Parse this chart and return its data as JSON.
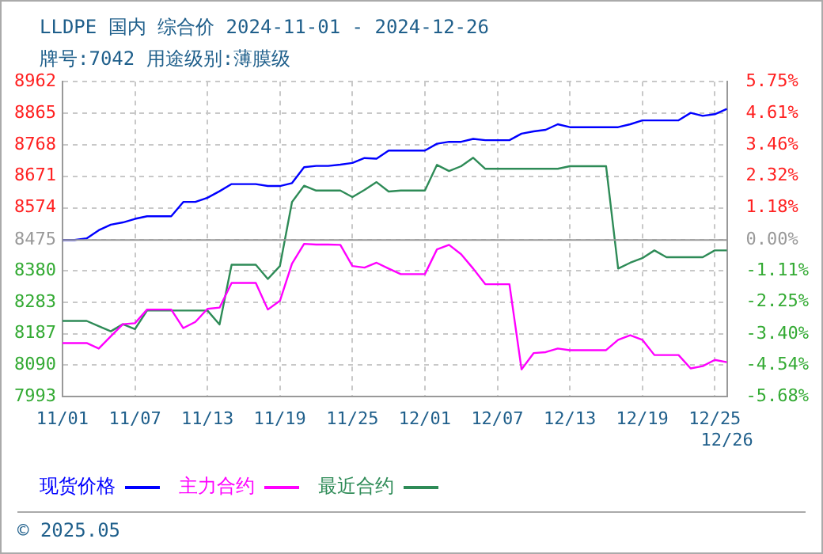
{
  "chart_data": {
    "type": "line",
    "title": "LLDPE 国内 综合价 2024-11-01 - 2024-12-26",
    "subtitle": "牌号:7042 用途级别:薄膜级",
    "categories": [
      "11/01",
      null,
      null,
      null,
      null,
      null,
      "11/07",
      null,
      null,
      null,
      null,
      null,
      "11/13",
      null,
      null,
      null,
      null,
      null,
      "11/19",
      null,
      null,
      null,
      null,
      null,
      "11/25",
      null,
      null,
      null,
      null,
      null,
      "12/01",
      null,
      null,
      null,
      null,
      null,
      "12/07",
      null,
      null,
      null,
      null,
      null,
      "12/13",
      null,
      null,
      null,
      null,
      null,
      "12/19",
      null,
      null,
      null,
      null,
      null,
      "12/25",
      "12/26"
    ],
    "series": [
      {
        "name": "现货价格",
        "color": "#0000ff",
        "values": [
          8475,
          8475,
          8480,
          8505,
          8522,
          8529,
          8540,
          8548,
          8548,
          8548,
          8592,
          8592,
          8605,
          8625,
          8647,
          8647,
          8647,
          8641,
          8641,
          8650,
          8699,
          8703,
          8703,
          8707,
          8712,
          8727,
          8725,
          8750,
          8750,
          8750,
          8750,
          8771,
          8777,
          8777,
          8786,
          8782,
          8782,
          8782,
          8802,
          8809,
          8814,
          8831,
          8822,
          8822,
          8822,
          8822,
          8822,
          8831,
          8843,
          8843,
          8843,
          8843,
          8866,
          8857,
          8862,
          8878
        ]
      },
      {
        "name": "主力合约",
        "color": "#ff00ff",
        "values": [
          8158,
          8158,
          8158,
          8141,
          8179,
          8216,
          8219,
          8261,
          8261,
          8261,
          8204,
          8223,
          8263,
          8267,
          8343,
          8343,
          8343,
          8261,
          8288,
          8402,
          8463,
          8461,
          8461,
          8460,
          8395,
          8390,
          8405,
          8387,
          8370,
          8370,
          8370,
          8446,
          8460,
          8431,
          8387,
          8339,
          8339,
          8339,
          8077,
          8127,
          8130,
          8141,
          8136,
          8136,
          8136,
          8136,
          8168,
          8182,
          8168,
          8121,
          8121,
          8121,
          8080,
          8087,
          8106,
          8099
        ]
      },
      {
        "name": "最近合约",
        "color": "#2e8b57",
        "values": [
          8226,
          8226,
          8226,
          8210,
          8194,
          8216,
          8201,
          8258,
          8258,
          8258,
          8258,
          8258,
          8258,
          8215,
          8399,
          8399,
          8399,
          8355,
          8395,
          8592,
          8642,
          8627,
          8627,
          8627,
          8607,
          8629,
          8653,
          8624,
          8627,
          8627,
          8627,
          8706,
          8687,
          8702,
          8728,
          8694,
          8694,
          8694,
          8694,
          8694,
          8694,
          8694,
          8702,
          8702,
          8702,
          8702,
          8387,
          8405,
          8419,
          8443,
          8422,
          8422,
          8422,
          8422,
          8443,
          8443
        ]
      }
    ],
    "ylim": [
      7993,
      8962
    ],
    "yticks": [
      7993,
      8090,
      8187,
      8283,
      8380,
      8475,
      8574,
      8671,
      8768,
      8865,
      8962
    ],
    "y2lim": [
      -5.68,
      5.75
    ],
    "y2ticks": [
      {
        "value": -5.68,
        "label": "-5.68%"
      },
      {
        "value": -4.54,
        "label": "-4.54%"
      },
      {
        "value": -3.4,
        "label": "-3.40%"
      },
      {
        "value": -2.25,
        "label": "-2.25%"
      },
      {
        "value": -1.11,
        "label": "-1.11%"
      },
      {
        "value": 0,
        "label": "0.00%"
      },
      {
        "value": 1.18,
        "label": "1.18%"
      },
      {
        "value": 2.32,
        "label": "2.32%"
      },
      {
        "value": 3.46,
        "label": "3.46%"
      },
      {
        "value": 4.61,
        "label": "4.61%"
      },
      {
        "value": 5.75,
        "label": "5.75%"
      }
    ],
    "ref_lines": [
      {
        "axis": "y",
        "value": 8475,
        "color": "#999999"
      }
    ],
    "grid": true,
    "legend": "bottom",
    "marker": "none",
    "line_style": "solid",
    "annotations": [
      "© 2025.05"
    ]
  }
}
